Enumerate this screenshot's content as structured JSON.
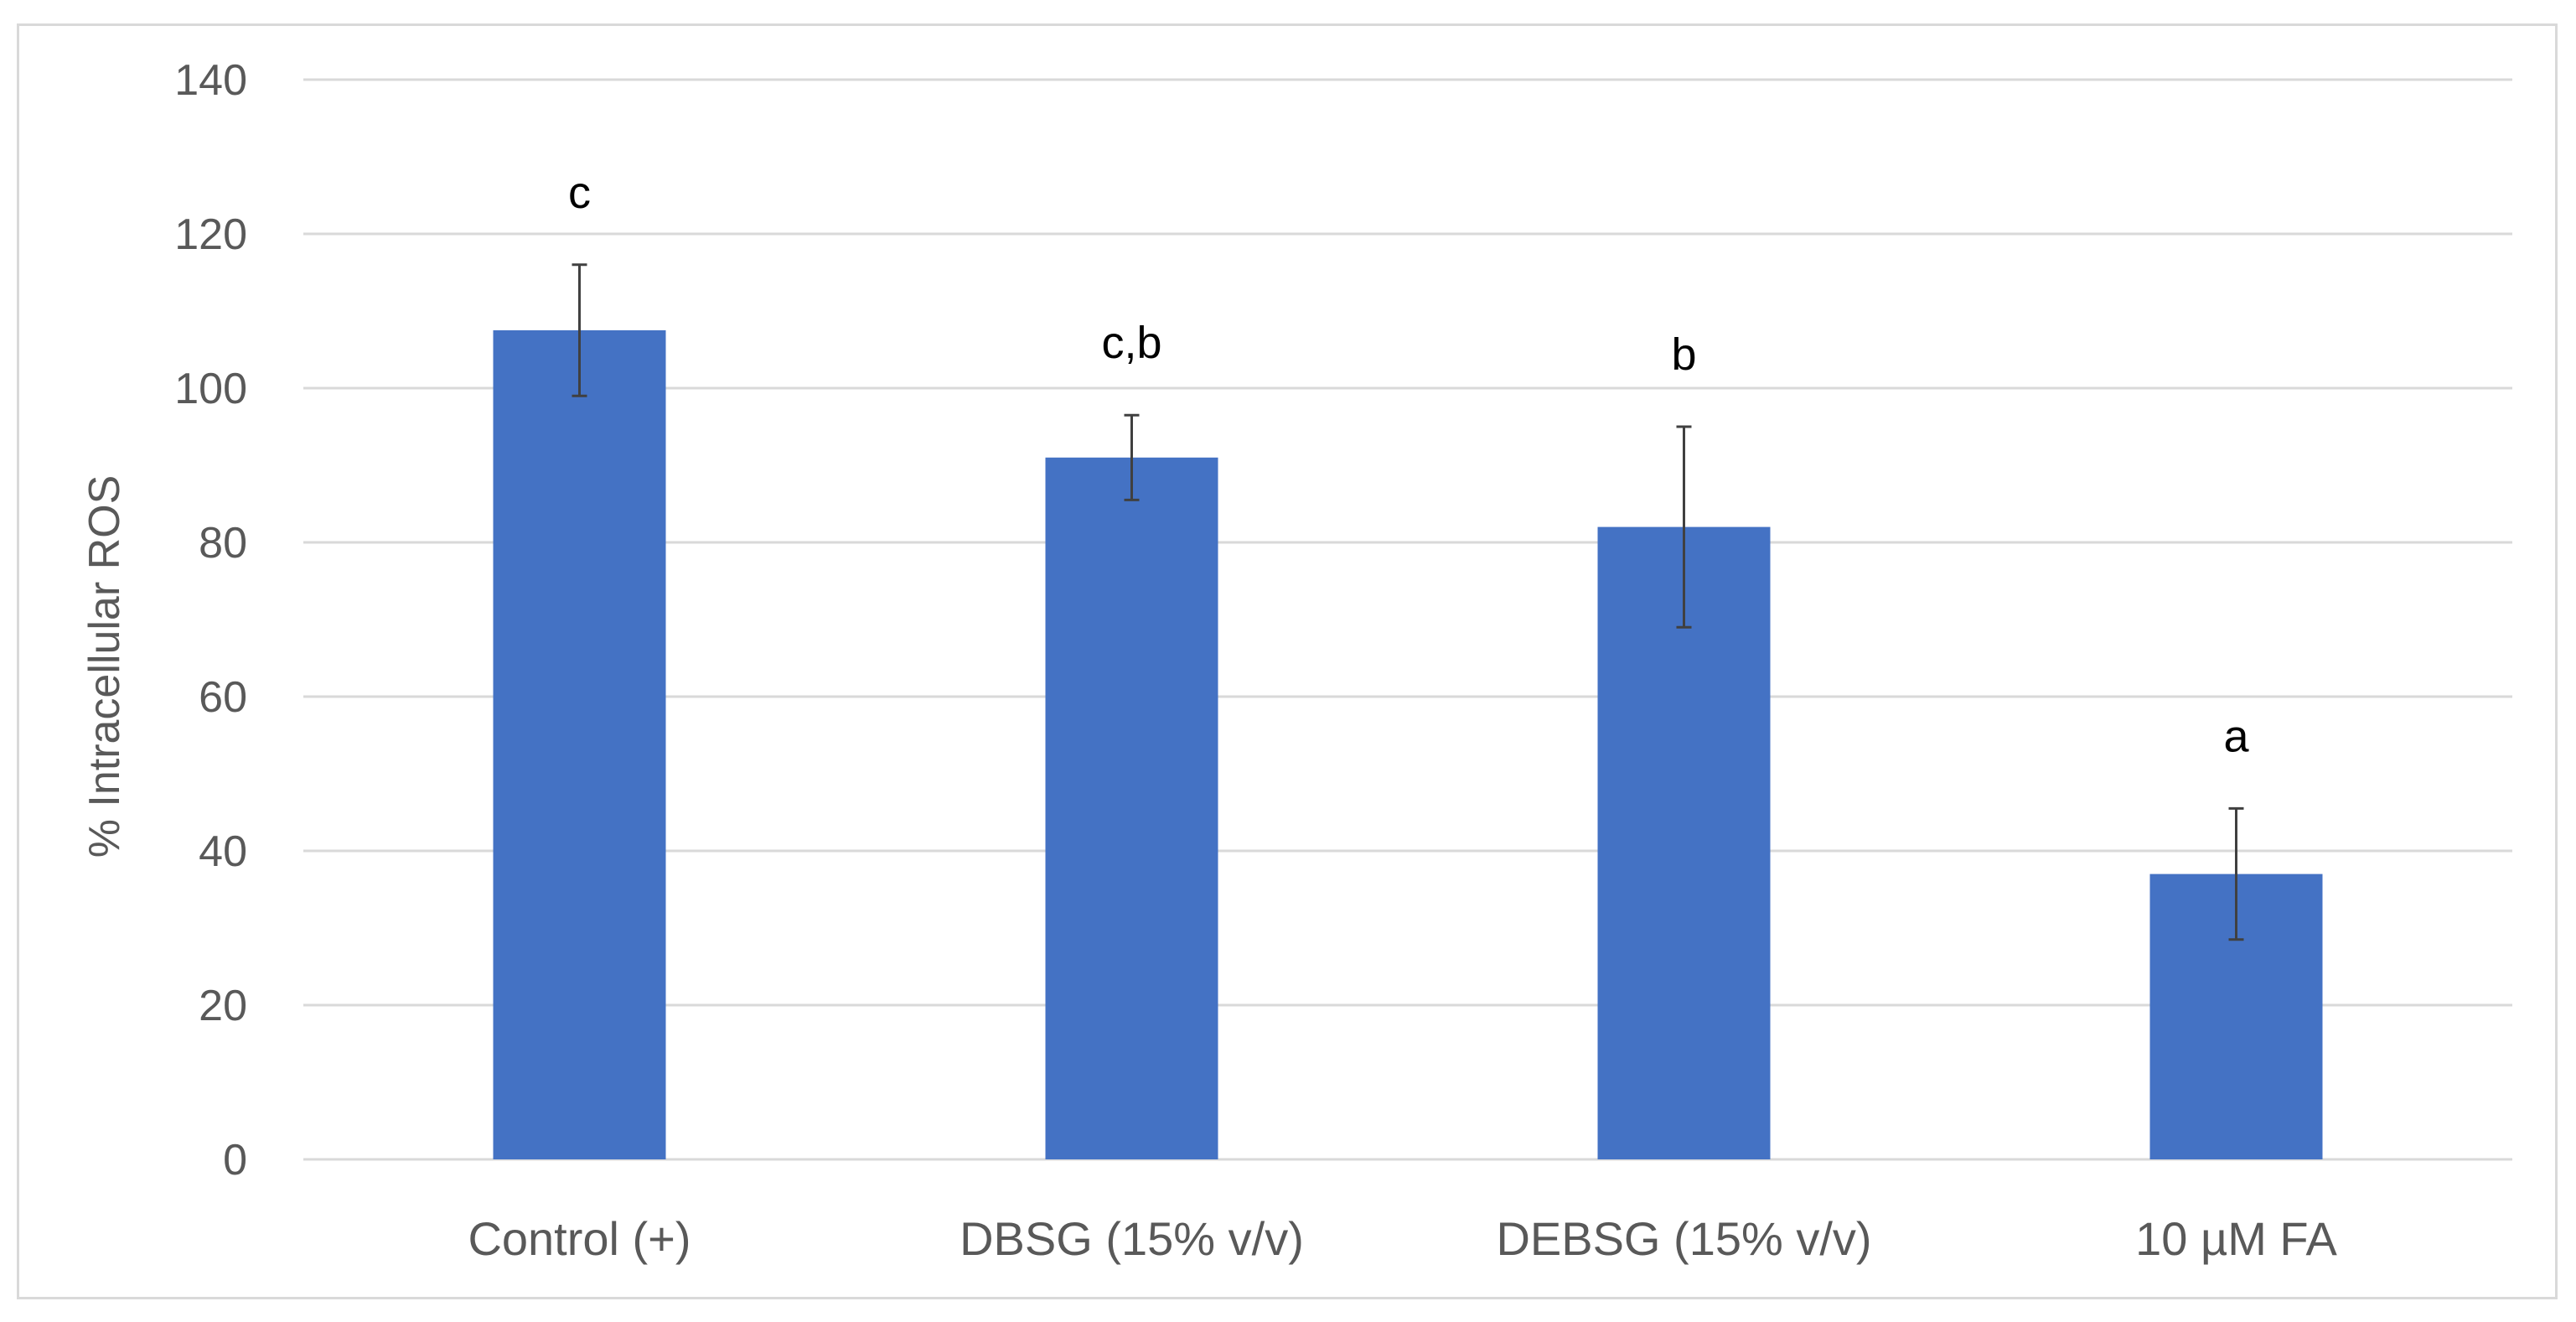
{
  "chart_data": {
    "type": "bar",
    "title": "",
    "xlabel": "",
    "ylabel": "% Intracellular ROS",
    "ylim": [
      0,
      140
    ],
    "yticks": [
      0,
      20,
      40,
      60,
      80,
      100,
      120,
      140
    ],
    "grid": true,
    "categories": [
      "Control (+)",
      "DBSG (15% v/v)",
      "DEBSG (15% v/v)",
      "10 µM FA"
    ],
    "values": [
      107.5,
      91,
      82,
      37
    ],
    "errors": [
      8.5,
      5.5,
      13,
      8.5
    ],
    "significance_labels": [
      "c",
      "c,b",
      "b",
      "a"
    ],
    "bar_color": "#4472c4",
    "grid_color": "#d9d9d9",
    "error_bar_color": "#404040"
  }
}
